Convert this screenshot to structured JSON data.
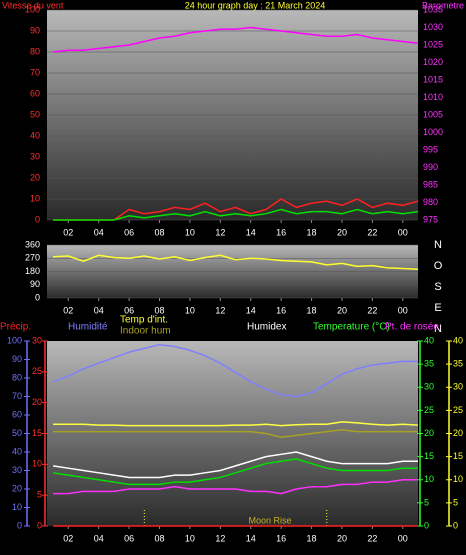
{
  "chart_data": [
    {
      "type": "line",
      "title": "24 hour graph day : 21 March 2024",
      "y_label": "Vitesse du vent",
      "y2_label": "Barometre",
      "x": [
        1,
        2,
        3,
        4,
        5,
        6,
        7,
        8,
        9,
        10,
        11,
        12,
        13,
        14,
        15,
        16,
        17,
        18,
        19,
        20,
        21,
        22,
        23,
        24,
        25
      ],
      "xlim": [
        0.6,
        25
      ],
      "xticks": [
        {
          "value": 2,
          "label": "02"
        },
        {
          "value": 4,
          "label": "04"
        },
        {
          "value": 6,
          "label": "06"
        },
        {
          "value": 8,
          "label": "08"
        },
        10,
        12,
        14,
        16,
        18,
        20,
        22,
        {
          "value": 24,
          "label": "00"
        }
      ],
      "ylim": [
        0,
        100
      ],
      "yticks": [
        0,
        10,
        20,
        30,
        40,
        50,
        60,
        70,
        80,
        90,
        100
      ],
      "ycolor": "#ff3030",
      "y2lim": [
        975,
        1035
      ],
      "y2ticks": [
        975,
        980,
        985,
        990,
        995,
        1000,
        1005,
        1010,
        1015,
        1020,
        1025,
        1030,
        1035
      ],
      "y2color": "#ff30ff",
      "grid": true,
      "series": [
        {
          "color": "#ff00ff",
          "axis": "y2",
          "values": [
            1023,
            1023.5,
            1023.5,
            1024,
            1024.5,
            1025,
            1026,
            1027,
            1027.5,
            1028.5,
            1029,
            1029.5,
            1029.5,
            1030,
            1029.5,
            1029,
            1028.5,
            1028,
            1027.5,
            1027.5,
            1028,
            1027,
            1026.5,
            1026,
            1025.5
          ]
        },
        {
          "color": "#ff2020",
          "axis": "y",
          "values": [
            0,
            0,
            0,
            0,
            0,
            5,
            3,
            4,
            6,
            5,
            8,
            4,
            6,
            3,
            5,
            10,
            6,
            8,
            9,
            7,
            10,
            6,
            8,
            7,
            9
          ]
        },
        {
          "color": "#00e000",
          "axis": "y",
          "values": [
            0,
            0,
            0,
            0,
            0,
            2,
            1,
            2,
            3,
            2,
            4,
            2,
            3,
            2,
            3,
            5,
            3,
            4,
            4,
            3,
            5,
            3,
            4,
            3,
            4
          ]
        }
      ]
    },
    {
      "type": "line",
      "x": [
        1,
        2,
        3,
        4,
        5,
        6,
        7,
        8,
        9,
        10,
        11,
        12,
        13,
        14,
        15,
        16,
        17,
        18,
        19,
        20,
        21,
        22,
        23,
        24,
        25
      ],
      "xlim": [
        0.6,
        25
      ],
      "xticks": [
        {
          "value": 2,
          "label": "02"
        },
        {
          "value": 4,
          "label": "04"
        },
        {
          "value": 6,
          "label": "06"
        },
        {
          "value": 8,
          "label": "08"
        },
        10,
        12,
        14,
        16,
        18,
        20,
        22,
        {
          "value": 24,
          "label": "00"
        }
      ],
      "ylim": [
        0,
        360
      ],
      "yticks": [
        0,
        90,
        180,
        270,
        360
      ],
      "ycolor": "#ffffff",
      "grid": true,
      "compass_labels": [
        "N",
        "O",
        "S",
        "E",
        "N"
      ],
      "series": [
        {
          "color": "#ffff30",
          "axis": "y",
          "values": [
            280,
            285,
            250,
            290,
            275,
            270,
            285,
            265,
            280,
            255,
            275,
            290,
            260,
            270,
            265,
            255,
            250,
            245,
            225,
            235,
            215,
            220,
            205,
            200,
            195
          ]
        }
      ]
    },
    {
      "type": "line",
      "x": [
        1,
        2,
        3,
        4,
        5,
        6,
        7,
        8,
        9,
        10,
        11,
        12,
        13,
        14,
        15,
        16,
        17,
        18,
        19,
        20,
        21,
        22,
        23,
        24,
        25
      ],
      "xlim": [
        0.6,
        25
      ],
      "xticks": [
        {
          "value": 2,
          "label": "02"
        },
        {
          "value": 4,
          "label": "04"
        },
        {
          "value": 6,
          "label": "06"
        },
        {
          "value": 8,
          "label": "08"
        },
        10,
        12,
        14,
        16,
        18,
        20,
        22,
        {
          "value": 24,
          "label": "00"
        }
      ],
      "ylim": [
        0,
        100
      ],
      "yticks": [
        0,
        10,
        20,
        30,
        40,
        50,
        60,
        70,
        80,
        90,
        100
      ],
      "ycolor": "#7070ff",
      "y2lim": [
        0,
        30
      ],
      "y2ticks": [
        0,
        5,
        10,
        15,
        20,
        25,
        30
      ],
      "y2color": "#ff3030",
      "y3lim": [
        0,
        40
      ],
      "y3ticks": [
        0,
        5,
        10,
        15,
        20,
        25,
        30,
        35,
        40
      ],
      "y3color": "#30ff30",
      "y4lim": [
        0,
        40
      ],
      "y4ticks": [
        0,
        5,
        10,
        15,
        20,
        25,
        30,
        35,
        40
      ],
      "y4color": "#ffff30",
      "events_x": [
        7,
        19
      ],
      "annotation": "Moon Rise",
      "series": [
        {
          "name": "Précip.",
          "color": "#ff2020",
          "axis": "y2",
          "values": [
            0,
            0,
            0,
            0,
            0,
            0,
            0,
            0,
            0,
            0,
            0,
            0,
            0,
            0,
            0,
            0,
            0,
            0,
            0,
            0,
            0,
            0,
            0,
            0,
            0
          ]
        },
        {
          "name": "Humidité",
          "color": "#8080ff",
          "axis": "y",
          "values": [
            78,
            81,
            85,
            88,
            91,
            94,
            96,
            98,
            97,
            95,
            92,
            88,
            83,
            78,
            74,
            71,
            70,
            72,
            77,
            82,
            85,
            87,
            88,
            89,
            89
          ]
        },
        {
          "name": "Temp d'int.",
          "color": "#ffff40",
          "axis": "y4",
          "values": [
            22,
            22,
            22,
            21.8,
            21.8,
            21.7,
            21.7,
            21.7,
            21.7,
            21.7,
            21.7,
            21.7,
            21.8,
            21.8,
            22,
            21.7,
            21.9,
            22,
            22,
            22.5,
            22.3,
            22,
            21.8,
            22,
            21.8
          ]
        },
        {
          "name": "Indoor hum",
          "color": "#a8a020",
          "axis": "y",
          "values": [
            51,
            51,
            51,
            51,
            51,
            51,
            51,
            51,
            51,
            51,
            51,
            51,
            51,
            51,
            50,
            48,
            49,
            50,
            51,
            52,
            51,
            51,
            51,
            51,
            51
          ]
        },
        {
          "name": "Humidex",
          "color": "#ffffff",
          "axis": "y3",
          "values": [
            13,
            12.5,
            12,
            11.5,
            11,
            10.5,
            10.5,
            10.5,
            11,
            11,
            11.5,
            12,
            13,
            14,
            15,
            15.5,
            16,
            15,
            14,
            13.5,
            13.5,
            13.5,
            13.5,
            14,
            14
          ]
        },
        {
          "name": "Temperature (°C)",
          "color": "#00e000",
          "axis": "y3",
          "values": [
            11.5,
            11,
            10.5,
            10,
            9.5,
            9,
            9,
            9,
            9.5,
            9.5,
            10,
            10.5,
            11.5,
            12.5,
            13.5,
            14,
            14.5,
            13.5,
            12.5,
            12,
            12,
            12,
            12,
            12.5,
            12.5
          ]
        },
        {
          "name": "Pt. de rosée",
          "color": "#ff30ff",
          "axis": "y3",
          "values": [
            7,
            7,
            7.5,
            7.5,
            7.5,
            8,
            8,
            8,
            8.5,
            8,
            8,
            8,
            8,
            7.5,
            7.5,
            7,
            8,
            8.5,
            8.5,
            9,
            9,
            9.5,
            9.5,
            10,
            10
          ]
        }
      ]
    }
  ]
}
